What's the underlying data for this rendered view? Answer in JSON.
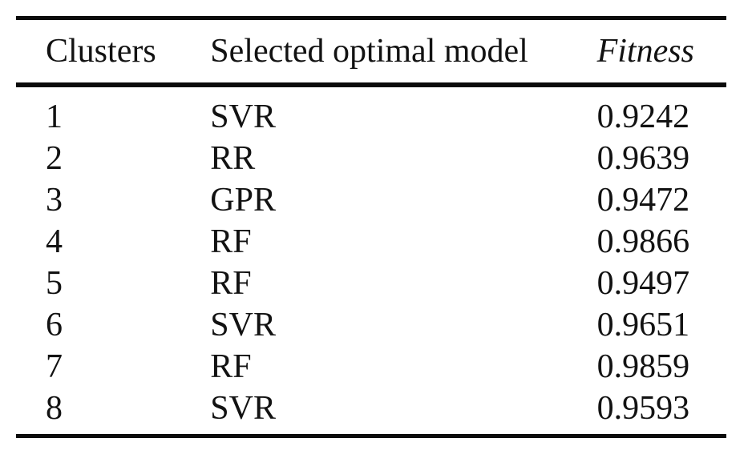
{
  "table": {
    "columns": [
      {
        "label": "Clusters",
        "italic": false
      },
      {
        "label": "Selected optimal model",
        "italic": false
      },
      {
        "label": "Fitness",
        "italic": true
      }
    ],
    "rows": [
      {
        "cluster": "1",
        "model": "SVR",
        "fitness": "0.9242"
      },
      {
        "cluster": "2",
        "model": "RR",
        "fitness": "0.9639"
      },
      {
        "cluster": "3",
        "model": "GPR",
        "fitness": "0.9472"
      },
      {
        "cluster": "4",
        "model": "RF",
        "fitness": "0.9866"
      },
      {
        "cluster": "5",
        "model": "RF",
        "fitness": "0.9497"
      },
      {
        "cluster": "6",
        "model": "SVR",
        "fitness": "0.9651"
      },
      {
        "cluster": "7",
        "model": "RF",
        "fitness": "0.9859"
      },
      {
        "cluster": "8",
        "model": "SVR",
        "fitness": "0.9593"
      }
    ]
  },
  "colors": {
    "text": "#121212",
    "rule": "#0b0b0b",
    "background": "#ffffff"
  }
}
